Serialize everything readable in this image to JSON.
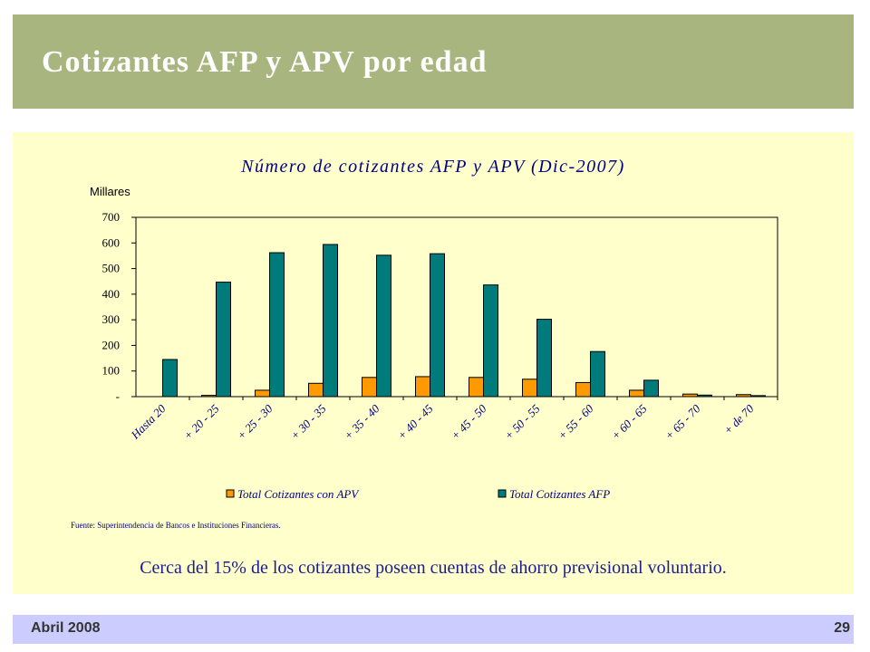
{
  "slide": {
    "title": "Cotizantes  AFP  y  APV  por  edad",
    "note": "Cerca del 15% de los cotizantes poseen cuentas de ahorro previsional voluntario.",
    "footer_date": "Abril 2008",
    "page_number": "29"
  },
  "colors": {
    "title_bar": "#a9b57e",
    "panel": "#ffffcc",
    "footer_bar": "#ccccff",
    "apv": "#ff9900",
    "afp": "#007b7b",
    "chart_text": "#000080"
  },
  "chart_data": {
    "type": "bar",
    "title": "Número de cotizantes AFP y APV (Dic-2007)",
    "unit_label": "Millares",
    "ylabel": "",
    "xlabel": "",
    "ylim": [
      0,
      700
    ],
    "yticks": [
      0,
      100,
      200,
      300,
      400,
      500,
      600,
      700
    ],
    "ytick_labels": [
      "-",
      "100",
      "200",
      "300",
      "400",
      "500",
      "600",
      "700"
    ],
    "categories": [
      "Hasta 20",
      "+ 20 - 25",
      "+ 25 - 30",
      "+ 30 - 35",
      "+ 35 - 40",
      "+ 40 - 45",
      "+ 45 - 50",
      "+ 50 - 55",
      "+ 55 - 60",
      "+ 60 - 65",
      "+ 65 - 70",
      "+ de 70"
    ],
    "series": [
      {
        "name": "Total Cotizantes con APV",
        "values": [
          0,
          5,
          25,
          52,
          75,
          78,
          75,
          68,
          55,
          25,
          10,
          8
        ]
      },
      {
        "name": "Total Cotizantes AFP",
        "values": [
          145,
          447,
          562,
          594,
          552,
          558,
          436,
          302,
          176,
          64,
          6,
          4
        ]
      }
    ],
    "legend_position": "bottom",
    "grid": false,
    "source": "Fuente: Superintendencia de Bancos e Instituciones Financieras."
  }
}
